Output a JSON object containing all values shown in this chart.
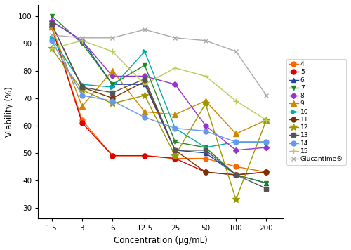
{
  "x": [
    1.5,
    3,
    6,
    12.5,
    25,
    50,
    100,
    200
  ],
  "series": {
    "4": {
      "values": [
        96,
        62,
        49,
        49,
        48,
        48,
        45,
        43
      ],
      "color": "#FF6600",
      "marker": "o",
      "ms": 5,
      "lw": 1.0
    },
    "5": {
      "values": [
        96,
        61,
        49,
        49,
        48,
        43,
        42,
        43
      ],
      "color": "#DD0000",
      "marker": "o",
      "ms": 5,
      "lw": 1.0
    },
    "6": {
      "values": [
        98,
        91,
        75,
        75,
        51,
        50,
        42,
        39
      ],
      "color": "#2244AA",
      "marker": "^",
      "ms": 5,
      "lw": 1.0
    },
    "7": {
      "values": [
        100,
        90,
        75,
        82,
        54,
        52,
        42,
        39
      ],
      "color": "#228822",
      "marker": "v",
      "ms": 5,
      "lw": 1.0
    },
    "8": {
      "values": [
        98,
        91,
        78,
        78,
        75,
        60,
        51,
        52
      ],
      "color": "#9933CC",
      "marker": "D",
      "ms": 4,
      "lw": 1.0
    },
    "9": {
      "values": [
        96,
        67,
        80,
        65,
        64,
        69,
        57,
        62
      ],
      "color": "#CC8800",
      "marker": "^",
      "ms": 6,
      "lw": 1.0
    },
    "10": {
      "values": [
        92,
        75,
        74,
        87,
        59,
        52,
        54,
        54
      ],
      "color": "#00AAAA",
      "marker": ">",
      "ms": 5,
      "lw": 1.0
    },
    "11": {
      "values": [
        97,
        74,
        70,
        76,
        51,
        43,
        42,
        43
      ],
      "color": "#7B3000",
      "marker": "o",
      "ms": 5,
      "lw": 1.0
    },
    "12": {
      "values": [
        88,
        73,
        68,
        71,
        49,
        68,
        33,
        62
      ],
      "color": "#999900",
      "marker": "*",
      "ms": 7,
      "lw": 1.0
    },
    "13": {
      "values": [
        97,
        74,
        72,
        77,
        51,
        51,
        42,
        37
      ],
      "color": "#555555",
      "marker": "s",
      "ms": 5,
      "lw": 1.0
    },
    "14": {
      "values": [
        91,
        71,
        69,
        63,
        59,
        58,
        54,
        54
      ],
      "color": "#6699EE",
      "marker": "o",
      "ms": 5,
      "lw": 1.0
    },
    "15": {
      "values": [
        88,
        91,
        87,
        75,
        81,
        78,
        69,
        62
      ],
      "color": "#BBCC55",
      "marker": "+",
      "ms": 6,
      "lw": 1.0
    },
    "Glucantime®": {
      "values": [
        93,
        92,
        92,
        95,
        92,
        91,
        87,
        71
      ],
      "color": "#AAAAAA",
      "marker": "x",
      "ms": 5,
      "lw": 1.0
    }
  },
  "xlabel": "Concentration (μg/mL)",
  "ylabel": "Viability (%)",
  "xticks": [
    1.5,
    3,
    6,
    12.5,
    25,
    50,
    100,
    200
  ],
  "xticklabels": [
    "1.5",
    "3",
    "6",
    "12.5",
    "25",
    "50",
    "100",
    "200"
  ],
  "xlim": [
    1.1,
    290
  ],
  "ylim": [
    26,
    104
  ],
  "yticks": [
    30,
    40,
    50,
    60,
    70,
    80,
    90,
    100
  ],
  "bg_color": "#FFFFFF"
}
